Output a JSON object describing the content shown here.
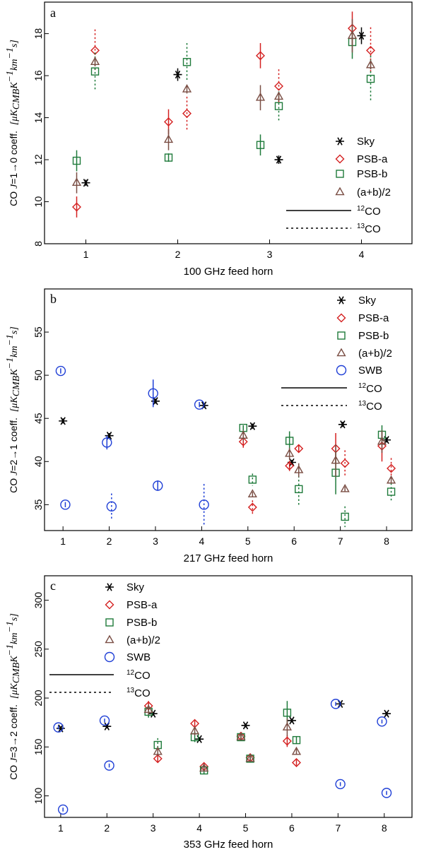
{
  "colors": {
    "Sky": "#000000",
    "PSB-a": "#d42020",
    "PSB-b": "#1e7a3a",
    "(a+b)/2": "#7a4e44",
    "SWB": "#1f3fd6"
  },
  "chart_data": [
    {
      "type": "scatter",
      "panel": "a",
      "xlabel": "100 GHz feed horn",
      "ylabel": "CO J=1→0 coeff. [μK_CMB K⁻¹ km⁻¹ s]",
      "ylabel_parts": {
        "co": "CO ",
        "j": "J",
        "trans": "=1→0 coeff.",
        "unit": "[μK",
        "sub": "CMB",
        "unit2": "K",
        "exp1": "−1",
        "unit3": "km",
        "exp2": "−1",
        "unit4": "s]"
      },
      "xlim": [
        0.55,
        4.55
      ],
      "ylim": [
        8,
        19.5
      ],
      "xticks": [
        1,
        2,
        3,
        4
      ],
      "yticks": [
        8,
        10,
        12,
        14,
        16,
        18
      ],
      "legend": {
        "position": "right",
        "entries": [
          "Sky",
          "PSB-a",
          "PSB-b",
          "(a+b)/2"
        ],
        "lines": [
          "12CO",
          "13CO"
        ],
        "line_label_sup": [
          "12",
          "13"
        ],
        "line_label_base": [
          "CO",
          "CO"
        ]
      },
      "series": [
        {
          "name": "Sky",
          "marker": "asterisk",
          "points": [
            {
              "x": 1.0,
              "y": 10.9,
              "err": 0.15,
              "dash": false
            },
            {
              "x": 2.0,
              "y": 16.05,
              "err": 0.3,
              "dash": false
            },
            {
              "x": 3.1,
              "y": 12.0,
              "err": 0.2,
              "dash": false
            },
            {
              "x": 4.0,
              "y": 17.9,
              "err": 0.4,
              "dash": false
            }
          ]
        },
        {
          "name": "PSB-a",
          "marker": "diamond",
          "points": [
            {
              "x": 0.9,
              "y": 9.75,
              "err": 0.5,
              "dash": false
            },
            {
              "x": 1.1,
              "y": 17.2,
              "err": 1.0,
              "dash": true
            },
            {
              "x": 1.9,
              "y": 13.8,
              "err": 0.6,
              "dash": false
            },
            {
              "x": 2.1,
              "y": 14.2,
              "err": 0.8,
              "dash": true
            },
            {
              "x": 2.9,
              "y": 16.95,
              "err": 0.6,
              "dash": false
            },
            {
              "x": 3.1,
              "y": 15.5,
              "err": 0.8,
              "dash": true
            },
            {
              "x": 3.9,
              "y": 18.25,
              "err": 0.8,
              "dash": false
            },
            {
              "x": 4.1,
              "y": 17.2,
              "err": 1.1,
              "dash": true
            }
          ]
        },
        {
          "name": "PSB-b",
          "marker": "square",
          "points": [
            {
              "x": 0.9,
              "y": 11.95,
              "err": 0.5,
              "dash": false
            },
            {
              "x": 1.1,
              "y": 16.2,
              "err": 0.9,
              "dash": true
            },
            {
              "x": 1.9,
              "y": 12.1,
              "err": 0.2,
              "dash": false
            },
            {
              "x": 2.1,
              "y": 16.65,
              "err": 0.9,
              "dash": true
            },
            {
              "x": 2.9,
              "y": 12.7,
              "err": 0.5,
              "dash": false
            },
            {
              "x": 3.1,
              "y": 14.55,
              "err": 0.7,
              "dash": true
            },
            {
              "x": 3.9,
              "y": 17.6,
              "err": 0.8,
              "dash": false
            },
            {
              "x": 4.1,
              "y": 15.85,
              "err": 1.1,
              "dash": true
            }
          ]
        },
        {
          "name": "(a+b)/2",
          "marker": "triangle",
          "points": [
            {
              "x": 0.9,
              "y": 10.9,
              "err": 0.5,
              "dash": false
            },
            {
              "x": 1.1,
              "y": 16.65,
              "err": 0.2,
              "dash": false
            },
            {
              "x": 1.9,
              "y": 12.95,
              "err": 0.5,
              "dash": false
            },
            {
              "x": 2.1,
              "y": 15.35,
              "err": 0.2,
              "dash": false
            },
            {
              "x": 2.9,
              "y": 14.95,
              "err": 0.6,
              "dash": false
            },
            {
              "x": 3.1,
              "y": 15.0,
              "err": 0.2,
              "dash": false
            },
            {
              "x": 3.9,
              "y": 17.9,
              "err": 0.8,
              "dash": false
            },
            {
              "x": 4.1,
              "y": 16.5,
              "err": 0.2,
              "dash": false
            }
          ]
        }
      ]
    },
    {
      "type": "scatter",
      "panel": "b",
      "xlabel": "217 GHz feed horn",
      "ylabel": "CO J=2→1 coeff. [μK_CMB K⁻¹ km⁻¹ s]",
      "ylabel_parts": {
        "co": "CO ",
        "j": "J",
        "trans": "=2→1 coeff.",
        "unit": "[μK",
        "sub": "CMB",
        "unit2": "K",
        "exp1": "−1",
        "unit3": "km",
        "exp2": "−1",
        "unit4": "s]"
      },
      "xlim": [
        0.6,
        8.55
      ],
      "ylim": [
        32,
        60
      ],
      "xticks": [
        1,
        2,
        3,
        4,
        5,
        6,
        7,
        8
      ],
      "yticks": [
        35,
        40,
        45,
        50,
        55
      ],
      "legend": {
        "position": "top-right",
        "entries": [
          "Sky",
          "PSB-a",
          "PSB-b",
          "(a+b)/2",
          "SWB"
        ],
        "lines": [
          "12CO",
          "13CO"
        ],
        "line_label_sup": [
          "12",
          "13"
        ],
        "line_label_base": [
          "CO",
          "CO"
        ]
      },
      "series": [
        {
          "name": "Sky",
          "marker": "asterisk",
          "points": [
            {
              "x": 1.0,
              "y": 44.7,
              "err": 0.3,
              "dash": false
            },
            {
              "x": 2.0,
              "y": 43.0,
              "err": 0.3,
              "dash": false
            },
            {
              "x": 3.0,
              "y": 47.0,
              "err": 0.3,
              "dash": false
            },
            {
              "x": 4.05,
              "y": 46.5,
              "err": 0.3,
              "dash": false
            },
            {
              "x": 5.1,
              "y": 44.1,
              "err": 0.3,
              "dash": false
            },
            {
              "x": 5.95,
              "y": 39.9,
              "err": 0.3,
              "dash": false
            },
            {
              "x": 7.05,
              "y": 44.3,
              "err": 0.3,
              "dash": false
            },
            {
              "x": 8.0,
              "y": 42.5,
              "err": 0.3,
              "dash": false
            }
          ]
        },
        {
          "name": "PSB-a",
          "marker": "diamond",
          "points": [
            {
              "x": 4.9,
              "y": 42.3,
              "err": 0.7,
              "dash": false
            },
            {
              "x": 5.1,
              "y": 34.7,
              "err": 0.8,
              "dash": true
            },
            {
              "x": 5.9,
              "y": 39.5,
              "err": 0.6,
              "dash": false
            },
            {
              "x": 6.1,
              "y": 41.5,
              "err": 0.4,
              "dash": false
            },
            {
              "x": 6.9,
              "y": 41.5,
              "err": 1.8,
              "dash": false
            },
            {
              "x": 7.1,
              "y": 39.8,
              "err": 1.5,
              "dash": true
            },
            {
              "x": 7.9,
              "y": 41.8,
              "err": 1.8,
              "dash": false
            },
            {
              "x": 8.1,
              "y": 39.2,
              "err": 1.2,
              "dash": true
            }
          ]
        },
        {
          "name": "PSB-b",
          "marker": "square",
          "points": [
            {
              "x": 4.9,
              "y": 43.9,
              "err": 0.3,
              "dash": false
            },
            {
              "x": 5.1,
              "y": 37.9,
              "err": 0.7,
              "dash": true
            },
            {
              "x": 5.9,
              "y": 42.4,
              "err": 1.1,
              "dash": false
            },
            {
              "x": 6.1,
              "y": 36.8,
              "err": 2.0,
              "dash": true
            },
            {
              "x": 6.9,
              "y": 38.7,
              "err": 2.5,
              "dash": false
            },
            {
              "x": 7.1,
              "y": 33.6,
              "err": 1.2,
              "dash": true
            },
            {
              "x": 7.9,
              "y": 43.1,
              "err": 1.1,
              "dash": false
            },
            {
              "x": 8.1,
              "y": 36.5,
              "err": 1.0,
              "dash": true
            }
          ]
        },
        {
          "name": "(a+b)/2",
          "marker": "triangle",
          "points": [
            {
              "x": 4.9,
              "y": 43.0,
              "err": 0.6,
              "dash": false
            },
            {
              "x": 5.1,
              "y": 36.2,
              "err": 0.3,
              "dash": false
            },
            {
              "x": 5.9,
              "y": 40.9,
              "err": 0.7,
              "dash": false
            },
            {
              "x": 6.1,
              "y": 39.0,
              "err": 0.8,
              "dash": false
            },
            {
              "x": 6.9,
              "y": 40.1,
              "err": 1.9,
              "dash": false
            },
            {
              "x": 7.1,
              "y": 36.8,
              "err": 0.3,
              "dash": false
            },
            {
              "x": 7.9,
              "y": 42.3,
              "err": 1.3,
              "dash": false
            },
            {
              "x": 8.1,
              "y": 37.8,
              "err": 0.3,
              "dash": false
            }
          ]
        },
        {
          "name": "SWB",
          "marker": "circle",
          "points": [
            {
              "x": 0.95,
              "y": 50.5,
              "err": 0.3,
              "dash": false
            },
            {
              "x": 1.05,
              "y": 35.0,
              "err": 0.3,
              "dash": false
            },
            {
              "x": 1.95,
              "y": 42.2,
              "err": 0.8,
              "dash": false
            },
            {
              "x": 2.05,
              "y": 34.8,
              "err": 1.5,
              "dash": true
            },
            {
              "x": 2.95,
              "y": 47.9,
              "err": 1.6,
              "dash": false
            },
            {
              "x": 3.05,
              "y": 37.2,
              "err": 0.6,
              "dash": false
            },
            {
              "x": 3.95,
              "y": 46.6,
              "err": 0.3,
              "dash": false
            },
            {
              "x": 4.05,
              "y": 35.0,
              "err": 2.4,
              "dash": true
            }
          ]
        }
      ]
    },
    {
      "type": "scatter",
      "panel": "c",
      "xlabel": "353 GHz feed horn",
      "ylabel": "CO J=3→2 coeff. [μK_CMB K⁻¹ km⁻¹ s]",
      "ylabel_parts": {
        "co": "CO ",
        "j": "J",
        "trans": "=3→2 coeff.",
        "unit": "[μK",
        "sub": "CMB",
        "unit2": "K",
        "exp1": "−1",
        "unit3": "km",
        "exp2": "−1",
        "unit4": "s]"
      },
      "xlim": [
        0.65,
        8.6
      ],
      "ylim": [
        78,
        325
      ],
      "xticks": [
        1,
        2,
        3,
        4,
        5,
        6,
        7,
        8
      ],
      "yticks": [
        100,
        150,
        200,
        250,
        300
      ],
      "legend": {
        "position": "top-left",
        "entries": [
          "Sky",
          "PSB-a",
          "PSB-b",
          "(a+b)/2",
          "SWB"
        ],
        "lines": [
          "12CO",
          "13CO"
        ],
        "line_label_sup": [
          "12",
          "13"
        ],
        "line_label_base": [
          "CO",
          "CO"
        ]
      },
      "series": [
        {
          "name": "Sky",
          "marker": "asterisk",
          "points": [
            {
              "x": 1.0,
              "y": 169,
              "err": 2,
              "dash": false
            },
            {
              "x": 2.0,
              "y": 171,
              "err": 2,
              "dash": false
            },
            {
              "x": 3.0,
              "y": 184,
              "err": 2,
              "dash": false
            },
            {
              "x": 4.0,
              "y": 158,
              "err": 2,
              "dash": false
            },
            {
              "x": 5.0,
              "y": 172,
              "err": 2,
              "dash": false
            },
            {
              "x": 6.0,
              "y": 177,
              "err": 2,
              "dash": false
            },
            {
              "x": 7.05,
              "y": 194,
              "err": 2,
              "dash": false
            },
            {
              "x": 8.05,
              "y": 184,
              "err": 2,
              "dash": false
            }
          ]
        },
        {
          "name": "PSB-a",
          "marker": "diamond",
          "points": [
            {
              "x": 2.9,
              "y": 192,
              "err": 5,
              "dash": false
            },
            {
              "x": 3.1,
              "y": 138,
              "err": 4,
              "dash": false
            },
            {
              "x": 3.9,
              "y": 174,
              "err": 3,
              "dash": false
            },
            {
              "x": 4.1,
              "y": 130,
              "err": 3,
              "dash": false
            },
            {
              "x": 4.9,
              "y": 161,
              "err": 3,
              "dash": false
            },
            {
              "x": 5.1,
              "y": 139,
              "err": 3,
              "dash": false
            },
            {
              "x": 5.9,
              "y": 156,
              "err": 6,
              "dash": false
            },
            {
              "x": 6.1,
              "y": 134,
              "err": 3,
              "dash": false
            }
          ]
        },
        {
          "name": "PSB-b",
          "marker": "square",
          "points": [
            {
              "x": 2.9,
              "y": 186,
              "err": 6,
              "dash": false
            },
            {
              "x": 3.1,
              "y": 152,
              "err": 7,
              "dash": true
            },
            {
              "x": 3.9,
              "y": 160,
              "err": 5,
              "dash": false
            },
            {
              "x": 4.1,
              "y": 126,
              "err": 4,
              "dash": false
            },
            {
              "x": 4.9,
              "y": 160,
              "err": 4,
              "dash": false
            },
            {
              "x": 5.1,
              "y": 138,
              "err": 3,
              "dash": false
            },
            {
              "x": 5.9,
              "y": 185,
              "err": 12,
              "dash": false
            },
            {
              "x": 6.1,
              "y": 157,
              "err": 4,
              "dash": false
            }
          ]
        },
        {
          "name": "(a+b)/2",
          "marker": "triangle",
          "points": [
            {
              "x": 2.9,
              "y": 188,
              "err": 5,
              "dash": false
            },
            {
              "x": 3.1,
              "y": 145,
              "err": 4,
              "dash": false
            },
            {
              "x": 3.9,
              "y": 166,
              "err": 4,
              "dash": false
            },
            {
              "x": 4.1,
              "y": 128,
              "err": 3,
              "dash": false
            },
            {
              "x": 4.9,
              "y": 160,
              "err": 3,
              "dash": false
            },
            {
              "x": 5.1,
              "y": 138,
              "err": 3,
              "dash": false
            },
            {
              "x": 5.9,
              "y": 170,
              "err": 9,
              "dash": false
            },
            {
              "x": 6.1,
              "y": 145,
              "err": 3,
              "dash": false
            }
          ]
        },
        {
          "name": "SWB",
          "marker": "circle",
          "points": [
            {
              "x": 0.95,
              "y": 170,
              "err": 2,
              "dash": false
            },
            {
              "x": 1.05,
              "y": 86,
              "err": 2,
              "dash": false
            },
            {
              "x": 1.95,
              "y": 177,
              "err": 2,
              "dash": false
            },
            {
              "x": 2.05,
              "y": 131,
              "err": 2,
              "dash": false
            },
            {
              "x": 6.95,
              "y": 194,
              "err": 2,
              "dash": false
            },
            {
              "x": 7.05,
              "y": 112,
              "err": 2,
              "dash": false
            },
            {
              "x": 7.95,
              "y": 176,
              "err": 2,
              "dash": false
            },
            {
              "x": 8.05,
              "y": 103,
              "err": 2,
              "dash": false
            }
          ]
        }
      ]
    }
  ]
}
